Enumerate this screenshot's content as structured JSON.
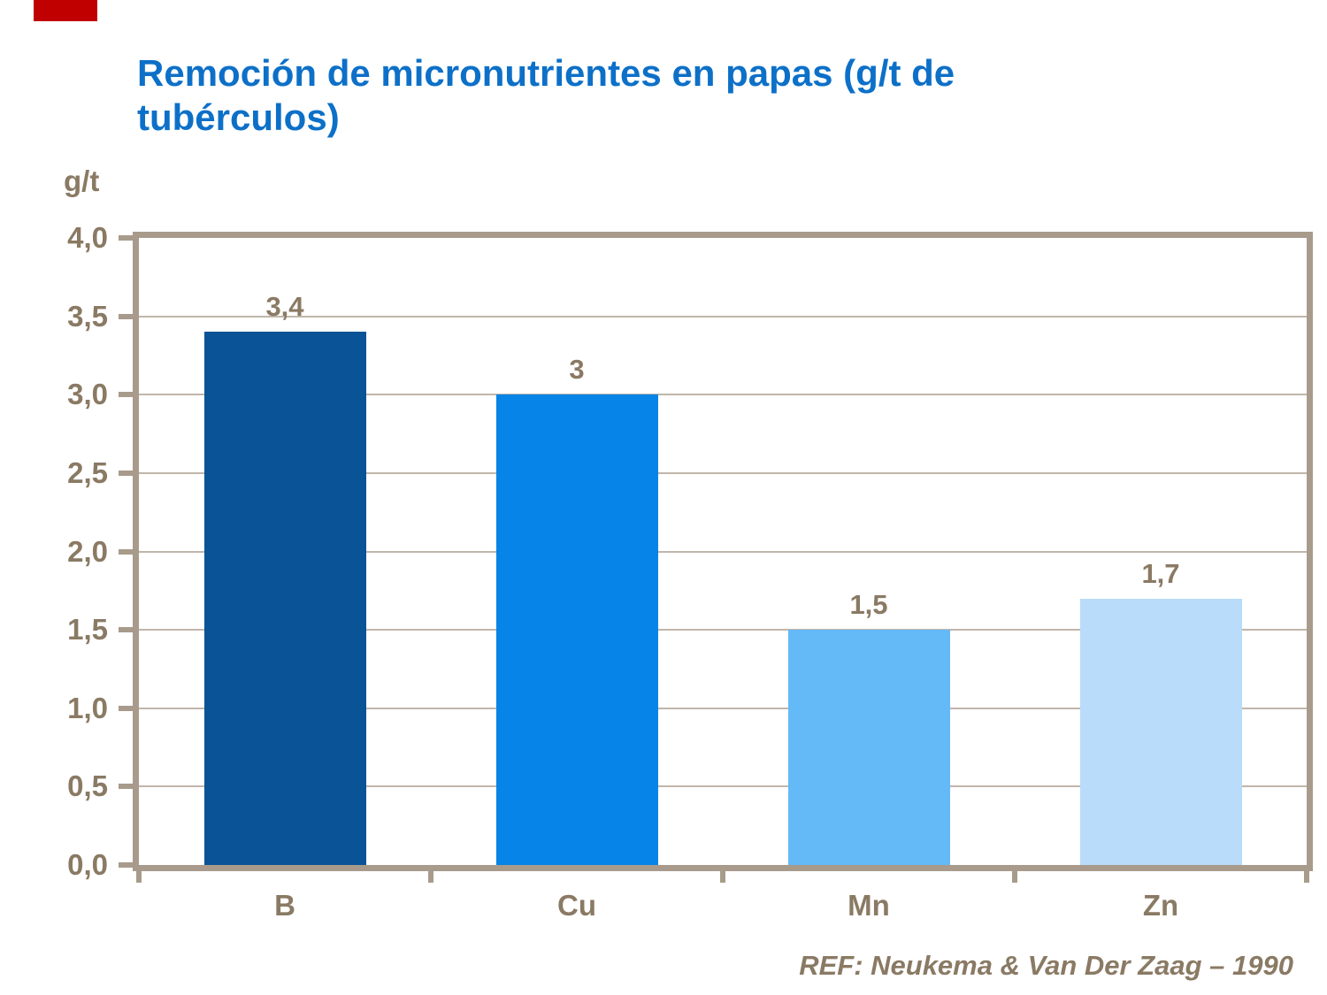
{
  "slide": {
    "title": "Remoción de micronutrientes en papas (g/t de tubérculos)",
    "y_unit_label": "g/t",
    "reference": "REF: Neukema & Van Der Zaag – 1990"
  },
  "colors": {
    "title_blue": "#0D70C8",
    "text_brown": "#8A7A64",
    "axis": "#A89B8C",
    "gridline": "#C0B6AA",
    "red_corner": "#C00000",
    "background": "#FFFFFF"
  },
  "chart_data": {
    "type": "bar",
    "title": "Remoción de micronutrientes en papas (g/t de tubérculos)",
    "xlabel": "",
    "ylabel": "g/t",
    "categories": [
      "B",
      "Cu",
      "Mn",
      "Zn"
    ],
    "values": [
      3.4,
      3,
      1.5,
      1.7
    ],
    "value_labels": [
      "3,4",
      "3",
      "1,5",
      "1,7"
    ],
    "bar_colors": [
      "#0A5396",
      "#0684E8",
      "#64B9F7",
      "#B8DCFA"
    ],
    "ylim": [
      0,
      4
    ],
    "ytick_step": 0.5,
    "yticks": [
      {
        "v": 0.0,
        "label": "0,0"
      },
      {
        "v": 0.5,
        "label": "0,5"
      },
      {
        "v": 1.0,
        "label": "1,0"
      },
      {
        "v": 1.5,
        "label": "1,5"
      },
      {
        "v": 2.0,
        "label": "2,0"
      },
      {
        "v": 2.5,
        "label": "2,5"
      },
      {
        "v": 3.0,
        "label": "3,0"
      },
      {
        "v": 3.5,
        "label": "3,5"
      },
      {
        "v": 4.0,
        "label": "4,0"
      }
    ],
    "grid": true,
    "legend": false,
    "source": "REF: Neukema & Van Der Zaag – 1990"
  }
}
